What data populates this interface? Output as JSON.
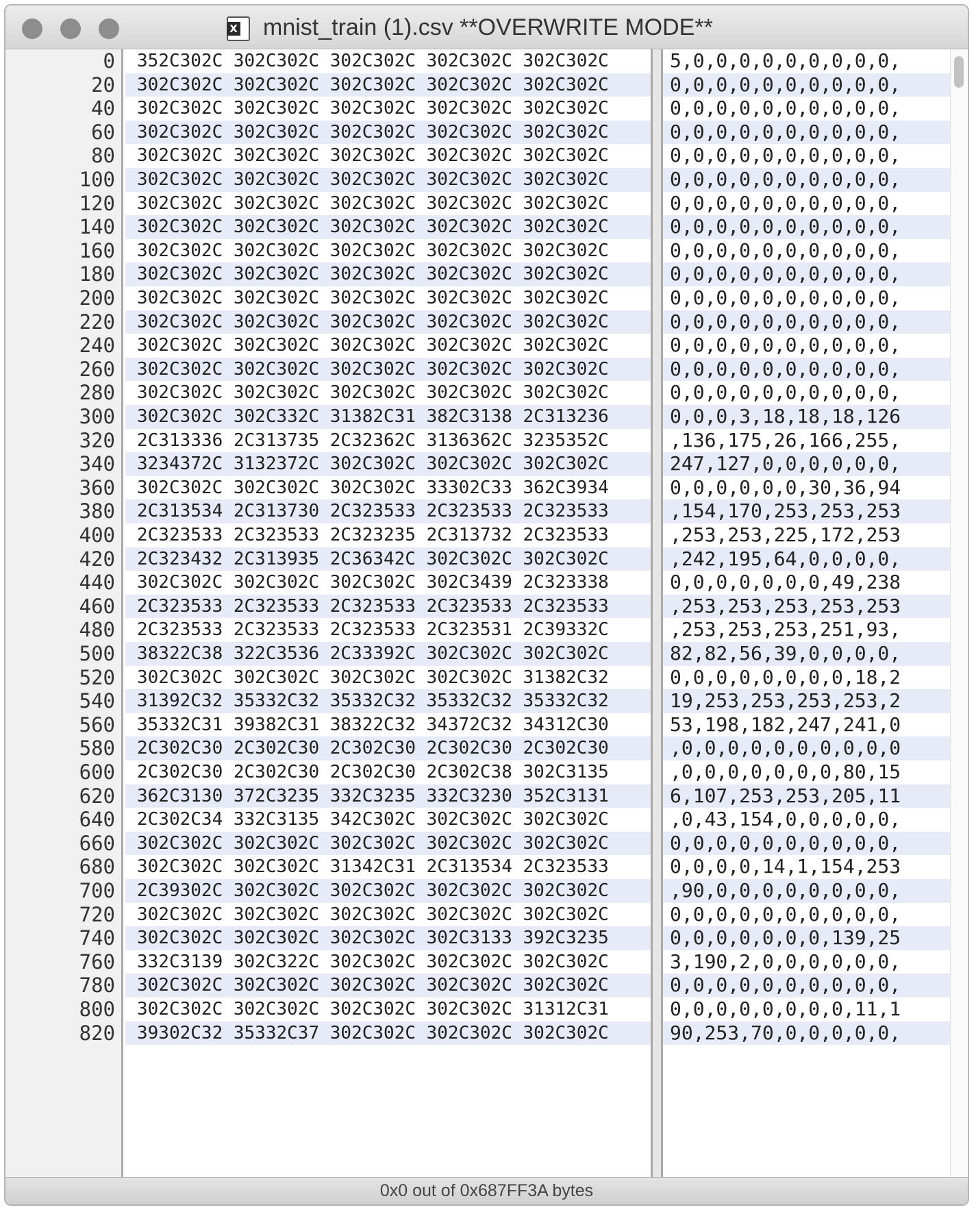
{
  "window": {
    "title": "mnist_train (1).csv **OVERWRITE MODE**",
    "status": "0x0 out of 0x687FF3A bytes",
    "file_icon_letter": "X"
  },
  "rows": [
    {
      "offset": "0",
      "hex": "352C302C 302C302C 302C302C 302C302C 302C302C",
      "text": "5,0,0,0,0,0,0,0,0,0,"
    },
    {
      "offset": "20",
      "hex": "302C302C 302C302C 302C302C 302C302C 302C302C",
      "text": "0,0,0,0,0,0,0,0,0,0,"
    },
    {
      "offset": "40",
      "hex": "302C302C 302C302C 302C302C 302C302C 302C302C",
      "text": "0,0,0,0,0,0,0,0,0,0,"
    },
    {
      "offset": "60",
      "hex": "302C302C 302C302C 302C302C 302C302C 302C302C",
      "text": "0,0,0,0,0,0,0,0,0,0,"
    },
    {
      "offset": "80",
      "hex": "302C302C 302C302C 302C302C 302C302C 302C302C",
      "text": "0,0,0,0,0,0,0,0,0,0,"
    },
    {
      "offset": "100",
      "hex": "302C302C 302C302C 302C302C 302C302C 302C302C",
      "text": "0,0,0,0,0,0,0,0,0,0,"
    },
    {
      "offset": "120",
      "hex": "302C302C 302C302C 302C302C 302C302C 302C302C",
      "text": "0,0,0,0,0,0,0,0,0,0,"
    },
    {
      "offset": "140",
      "hex": "302C302C 302C302C 302C302C 302C302C 302C302C",
      "text": "0,0,0,0,0,0,0,0,0,0,"
    },
    {
      "offset": "160",
      "hex": "302C302C 302C302C 302C302C 302C302C 302C302C",
      "text": "0,0,0,0,0,0,0,0,0,0,"
    },
    {
      "offset": "180",
      "hex": "302C302C 302C302C 302C302C 302C302C 302C302C",
      "text": "0,0,0,0,0,0,0,0,0,0,"
    },
    {
      "offset": "200",
      "hex": "302C302C 302C302C 302C302C 302C302C 302C302C",
      "text": "0,0,0,0,0,0,0,0,0,0,"
    },
    {
      "offset": "220",
      "hex": "302C302C 302C302C 302C302C 302C302C 302C302C",
      "text": "0,0,0,0,0,0,0,0,0,0,"
    },
    {
      "offset": "240",
      "hex": "302C302C 302C302C 302C302C 302C302C 302C302C",
      "text": "0,0,0,0,0,0,0,0,0,0,"
    },
    {
      "offset": "260",
      "hex": "302C302C 302C302C 302C302C 302C302C 302C302C",
      "text": "0,0,0,0,0,0,0,0,0,0,"
    },
    {
      "offset": "280",
      "hex": "302C302C 302C302C 302C302C 302C302C 302C302C",
      "text": "0,0,0,0,0,0,0,0,0,0,"
    },
    {
      "offset": "300",
      "hex": "302C302C 302C332C 31382C31 382C3138 2C313236",
      "text": "0,0,0,3,18,18,18,126"
    },
    {
      "offset": "320",
      "hex": "2C313336 2C313735 2C32362C 3136362C 3235352C",
      "text": ",136,175,26,166,255,"
    },
    {
      "offset": "340",
      "hex": "3234372C 3132372C 302C302C 302C302C 302C302C",
      "text": "247,127,0,0,0,0,0,0,"
    },
    {
      "offset": "360",
      "hex": "302C302C 302C302C 302C302C 33302C33 362C3934",
      "text": "0,0,0,0,0,0,30,36,94"
    },
    {
      "offset": "380",
      "hex": "2C313534 2C313730 2C323533 2C323533 2C323533",
      "text": ",154,170,253,253,253"
    },
    {
      "offset": "400",
      "hex": "2C323533 2C323533 2C323235 2C313732 2C323533",
      "text": ",253,253,225,172,253"
    },
    {
      "offset": "420",
      "hex": "2C323432 2C313935 2C36342C 302C302C 302C302C",
      "text": ",242,195,64,0,0,0,0,"
    },
    {
      "offset": "440",
      "hex": "302C302C 302C302C 302C302C 302C3439 2C323338",
      "text": "0,0,0,0,0,0,0,49,238"
    },
    {
      "offset": "460",
      "hex": "2C323533 2C323533 2C323533 2C323533 2C323533",
      "text": ",253,253,253,253,253"
    },
    {
      "offset": "480",
      "hex": "2C323533 2C323533 2C323533 2C323531 2C39332C",
      "text": ",253,253,253,251,93,"
    },
    {
      "offset": "500",
      "hex": "38322C38 322C3536 2C33392C 302C302C 302C302C",
      "text": "82,82,56,39,0,0,0,0,"
    },
    {
      "offset": "520",
      "hex": "302C302C 302C302C 302C302C 302C302C 31382C32",
      "text": "0,0,0,0,0,0,0,0,18,2"
    },
    {
      "offset": "540",
      "hex": "31392C32 35332C32 35332C32 35332C32 35332C32",
      "text": "19,253,253,253,253,2"
    },
    {
      "offset": "560",
      "hex": "35332C31 39382C31 38322C32 34372C32 34312C30",
      "text": "53,198,182,247,241,0"
    },
    {
      "offset": "580",
      "hex": "2C302C30 2C302C30 2C302C30 2C302C30 2C302C30",
      "text": ",0,0,0,0,0,0,0,0,0,0"
    },
    {
      "offset": "600",
      "hex": "2C302C30 2C302C30 2C302C30 2C302C38 302C3135",
      "text": ",0,0,0,0,0,0,0,80,15"
    },
    {
      "offset": "620",
      "hex": "362C3130 372C3235 332C3235 332C3230 352C3131",
      "text": "6,107,253,253,205,11"
    },
    {
      "offset": "640",
      "hex": "2C302C34 332C3135 342C302C 302C302C 302C302C",
      "text": ",0,43,154,0,0,0,0,0,"
    },
    {
      "offset": "660",
      "hex": "302C302C 302C302C 302C302C 302C302C 302C302C",
      "text": "0,0,0,0,0,0,0,0,0,0,"
    },
    {
      "offset": "680",
      "hex": "302C302C 302C302C 31342C31 2C313534 2C323533",
      "text": "0,0,0,0,14,1,154,253"
    },
    {
      "offset": "700",
      "hex": "2C39302C 302C302C 302C302C 302C302C 302C302C",
      "text": ",90,0,0,0,0,0,0,0,0,"
    },
    {
      "offset": "720",
      "hex": "302C302C 302C302C 302C302C 302C302C 302C302C",
      "text": "0,0,0,0,0,0,0,0,0,0,"
    },
    {
      "offset": "740",
      "hex": "302C302C 302C302C 302C302C 302C3133 392C3235",
      "text": "0,0,0,0,0,0,0,139,25"
    },
    {
      "offset": "760",
      "hex": "332C3139 302C322C 302C302C 302C302C 302C302C",
      "text": "3,190,2,0,0,0,0,0,0,"
    },
    {
      "offset": "780",
      "hex": "302C302C 302C302C 302C302C 302C302C 302C302C",
      "text": "0,0,0,0,0,0,0,0,0,0,"
    },
    {
      "offset": "800",
      "hex": "302C302C 302C302C 302C302C 302C302C 31312C31",
      "text": "0,0,0,0,0,0,0,0,11,1"
    },
    {
      "offset": "820",
      "hex": "39302C32 35332C37 302C302C 302C302C 302C302C",
      "text": "90,253,70,0,0,0,0,0,"
    }
  ]
}
